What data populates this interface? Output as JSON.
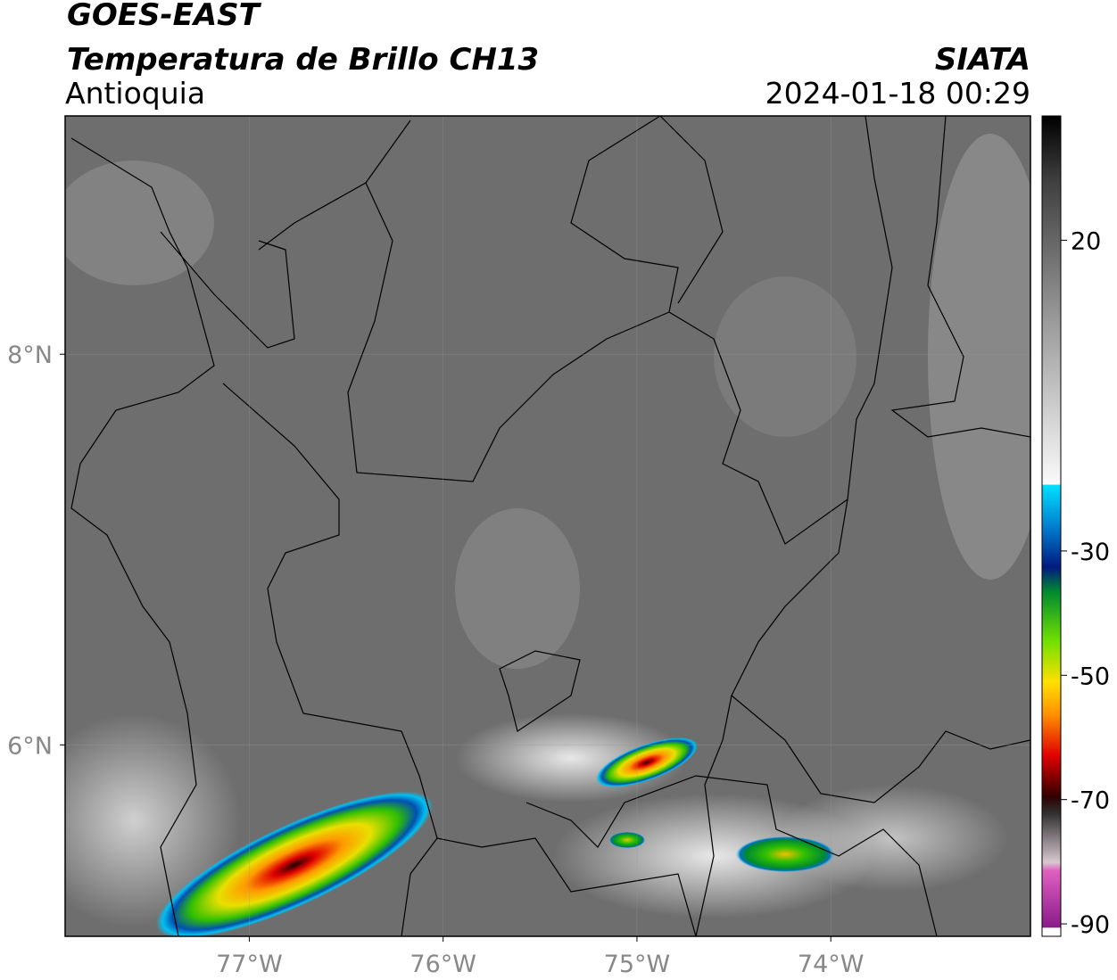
{
  "header": {
    "title": "GOES-EAST",
    "subtitle": "Temperatura de Brillo CH13",
    "region": "Antioquia",
    "source": "SIATA",
    "datetime": "2024-01-18 00:29"
  },
  "map": {
    "xlim": [
      -77.95,
      -72.97
    ],
    "ylim": [
      5.02,
      9.22
    ],
    "xticks": [
      {
        "value": -77,
        "label": "77°W"
      },
      {
        "value": -76,
        "label": "76°W"
      },
      {
        "value": -75,
        "label": "75°W"
      },
      {
        "value": -74,
        "label": "74°W"
      }
    ],
    "yticks": [
      {
        "value": 8,
        "label": "8°N"
      },
      {
        "value": 6,
        "label": "6°N"
      }
    ],
    "grid": true,
    "colorbar": {
      "clim": [
        -92,
        40
      ],
      "ticks": [
        20,
        -30,
        -50,
        -70,
        -90
      ]
    }
  }
}
